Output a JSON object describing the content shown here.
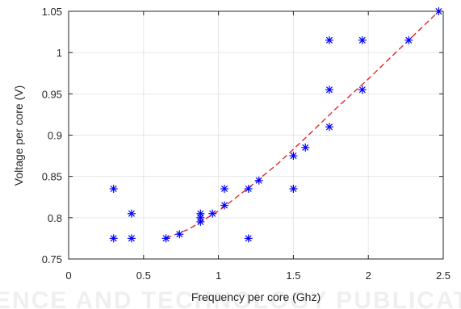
{
  "chart_data": {
    "type": "scatter",
    "title": "",
    "xlabel": "Frequency per core (Ghz)",
    "ylabel": "Voltage per core (V)",
    "xlim": [
      0,
      2.5
    ],
    "ylim": [
      0.75,
      1.05
    ],
    "xticks": [
      0,
      0.5,
      1,
      1.5,
      2,
      2.5
    ],
    "xtick_labels": [
      "0",
      "0.5",
      "1",
      "1.5",
      "2",
      "2.5"
    ],
    "yticks": [
      0.75,
      0.8,
      0.85,
      0.9,
      0.95,
      1,
      1.05
    ],
    "ytick_labels": [
      "0.75",
      "0.8",
      "0.85",
      "0.9",
      "0.95",
      "1",
      "1.05"
    ],
    "grid": true,
    "series": [
      {
        "type": "scatter",
        "marker": "asterisk",
        "color": "#0000ff",
        "x": [
          0.3,
          0.3,
          0.42,
          0.42,
          0.65,
          0.74,
          0.88,
          0.88,
          0.88,
          0.96,
          1.04,
          1.04,
          1.2,
          1.2,
          1.27,
          1.5,
          1.5,
          1.58,
          1.74,
          1.74,
          1.74,
          1.96,
          1.96,
          2.27,
          2.47
        ],
        "y": [
          0.835,
          0.775,
          0.805,
          0.775,
          0.775,
          0.78,
          0.805,
          0.8,
          0.795,
          0.805,
          0.835,
          0.815,
          0.835,
          0.775,
          0.845,
          0.875,
          0.835,
          0.885,
          1.015,
          0.955,
          0.91,
          1.015,
          0.955,
          1.015,
          1.05
        ]
      },
      {
        "type": "line",
        "style": "dashed",
        "color": "#e41a1c",
        "x": [
          0.65,
          0.8,
          1.0,
          1.2,
          1.4,
          1.6,
          1.8,
          2.0,
          2.2,
          2.47
        ],
        "y": [
          0.775,
          0.786,
          0.808,
          0.836,
          0.866,
          0.9,
          0.935,
          0.968,
          1.003,
          1.05
        ]
      }
    ],
    "watermark_text": "SCIENCE AND TECHNOLOGY PUBLICATIONS"
  }
}
